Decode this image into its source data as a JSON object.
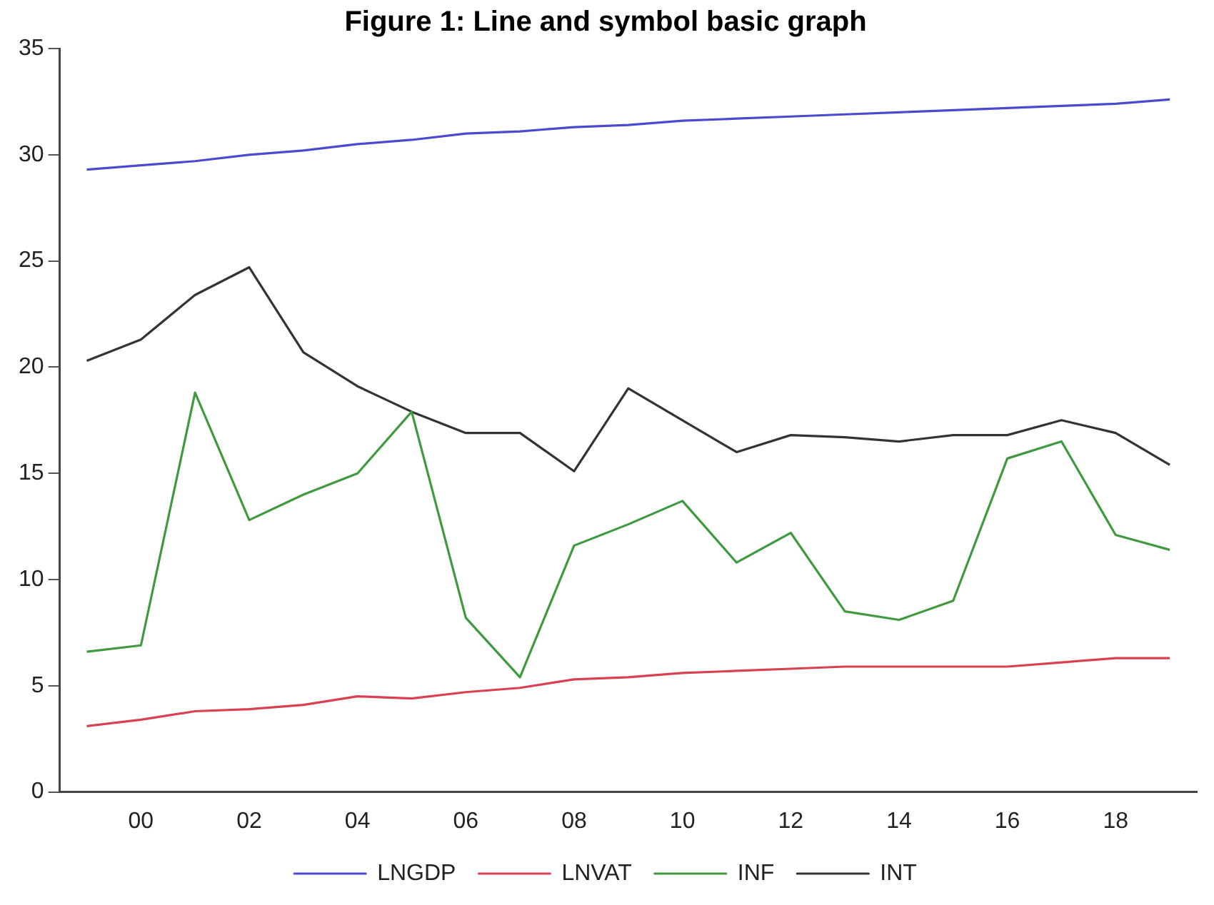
{
  "chart_data": {
    "type": "line",
    "title": "Figure 1: Line and symbol basic graph",
    "categories": [
      null,
      "00",
      null,
      "02",
      null,
      "04",
      null,
      "06",
      null,
      "08",
      null,
      "10",
      null,
      "12",
      null,
      "14",
      null,
      "16",
      null,
      "18",
      null
    ],
    "series": [
      {
        "name": "LNGDP",
        "color": "#4a4ad0",
        "values": [
          29.3,
          29.5,
          29.7,
          30.0,
          30.2,
          30.5,
          30.7,
          31.0,
          31.1,
          31.3,
          31.4,
          31.6,
          31.7,
          31.8,
          31.9,
          32.0,
          32.1,
          32.2,
          32.3,
          32.4,
          32.6
        ]
      },
      {
        "name": "LNVAT",
        "color": "#d94050",
        "values": [
          3.1,
          3.4,
          3.8,
          3.9,
          4.1,
          4.5,
          4.4,
          4.7,
          4.9,
          5.3,
          5.4,
          5.6,
          5.7,
          5.8,
          5.9,
          5.9,
          5.9,
          5.9,
          6.1,
          6.3,
          6.3
        ]
      },
      {
        "name": "INF",
        "color": "#3f9a3f",
        "values": [
          6.6,
          6.9,
          18.8,
          12.8,
          14.0,
          15.0,
          17.9,
          8.2,
          5.4,
          11.6,
          12.6,
          13.7,
          10.8,
          12.2,
          8.5,
          8.1,
          9.0,
          15.7,
          16.5,
          12.1,
          11.4
        ]
      },
      {
        "name": "INT",
        "color": "#333333",
        "values": [
          20.3,
          21.3,
          23.4,
          24.7,
          20.7,
          19.1,
          17.9,
          16.9,
          16.9,
          15.1,
          19.0,
          17.5,
          16.0,
          16.8,
          16.7,
          16.5,
          16.8,
          16.8,
          17.5,
          16.9,
          15.4
        ]
      }
    ],
    "ylim": [
      0,
      35
    ],
    "yticks": [
      0,
      5,
      10,
      15,
      20,
      25,
      30,
      35
    ],
    "grid": false,
    "legend": "bottom",
    "marker": "none",
    "line_style": "solid"
  }
}
